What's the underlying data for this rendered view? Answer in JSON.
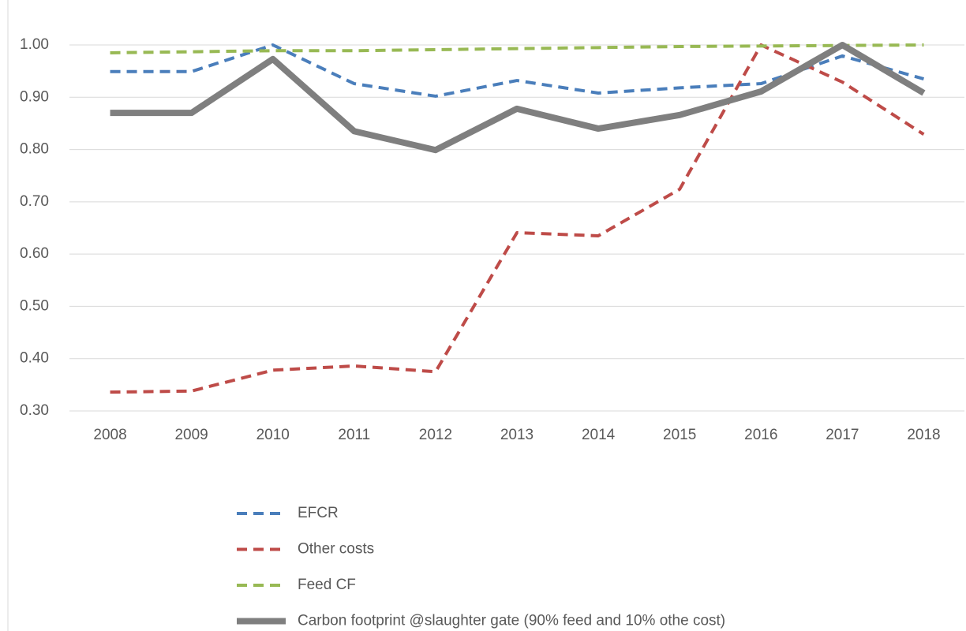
{
  "chart_data": {
    "type": "line",
    "categories": [
      "2008",
      "2009",
      "2010",
      "2011",
      "2012",
      "2013",
      "2014",
      "2015",
      "2016",
      "2017",
      "2018"
    ],
    "series": [
      {
        "name": "EFCR",
        "color": "#4a7ebb",
        "dashed": true,
        "values": [
          0.949,
          0.949,
          1.0,
          0.926,
          0.902,
          0.932,
          0.908,
          0.918,
          0.926,
          0.979,
          0.935
        ]
      },
      {
        "name": "Other costs",
        "color": "#be4b48",
        "dashed": true,
        "values": [
          0.336,
          0.338,
          0.378,
          0.386,
          0.375,
          0.641,
          0.635,
          0.724,
          1.0,
          0.929,
          0.829
        ]
      },
      {
        "name": "Feed CF",
        "color": "#98b954",
        "dashed": true,
        "values": [
          0.985,
          0.987,
          0.989,
          0.989,
          0.991,
          0.993,
          0.995,
          0.997,
          0.998,
          0.999,
          1.0
        ]
      },
      {
        "name": "Carbon footprint @slaughter gate (90% feed and 10% othe cost)",
        "color": "#7f7f7f",
        "dashed": false,
        "values": [
          0.87,
          0.87,
          0.973,
          0.835,
          0.799,
          0.878,
          0.84,
          0.866,
          0.911,
          1.0,
          0.908
        ]
      }
    ],
    "ylim": [
      0.3,
      1.0
    ],
    "yticks": [
      {
        "value": 0.3,
        "label": "0.30"
      },
      {
        "value": 0.4,
        "label": "0.40"
      },
      {
        "value": 0.5,
        "label": "0.50"
      },
      {
        "value": 0.6,
        "label": "0.60"
      },
      {
        "value": 0.7,
        "label": "0.70"
      },
      {
        "value": 0.8,
        "label": "0.80"
      },
      {
        "value": 0.9,
        "label": "0.90"
      },
      {
        "value": 1.0,
        "label": "1.00"
      }
    ],
    "grid": true,
    "legend": "bottom"
  }
}
